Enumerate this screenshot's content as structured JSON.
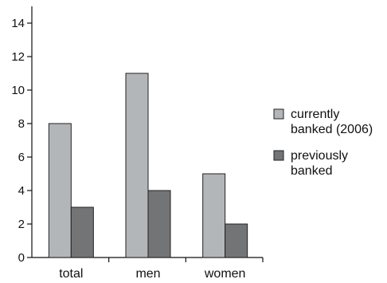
{
  "chart_data": {
    "type": "bar",
    "categories": [
      "total",
      "men",
      "women"
    ],
    "series": [
      {
        "name": "currently banked (2006)",
        "values": [
          8,
          11,
          5
        ],
        "color": "#b3b6b9"
      },
      {
        "name": "previously banked",
        "values": [
          3,
          4,
          2
        ],
        "color": "#737475"
      }
    ],
    "ylim": [
      0,
      15
    ],
    "yticks": [
      0,
      2,
      4,
      6,
      8,
      10,
      12,
      14
    ],
    "grid": false,
    "legend_position": "right",
    "legend": {
      "items": [
        {
          "lines": [
            "currently",
            "banked (2006)"
          ],
          "color": "#b3b6b9"
        },
        {
          "lines": [
            "previously",
            "banked"
          ],
          "color": "#737475"
        }
      ]
    },
    "title": "",
    "xlabel": "",
    "ylabel": ""
  }
}
